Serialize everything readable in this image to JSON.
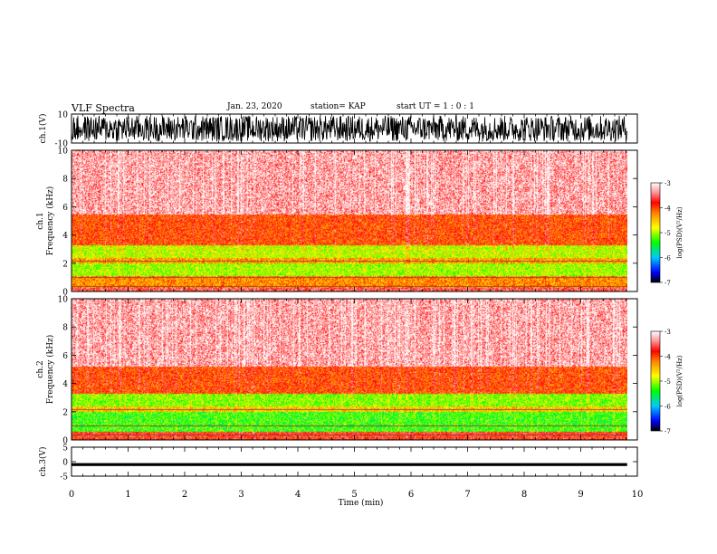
{
  "header": {
    "title": "VLF Spectra",
    "date": "Jan. 23, 2020",
    "station": "station= KAP",
    "start": "start UT = 1 : 0 : 1"
  },
  "chart_data": [
    {
      "type": "line",
      "panel": "ch1-waveform",
      "ylabel": "ch.1(V)",
      "ylim": [
        -10,
        10
      ],
      "yticks": [
        "10",
        "-10"
      ],
      "xlim": [
        0,
        10
      ],
      "data_end_min": 9.82,
      "description_of_trace": "dense black voltage trace oscillating roughly between -9 and +9 V",
      "amplitude_v": 9
    },
    {
      "type": "heatmap",
      "panel": "ch1-spectrogram",
      "ylabel": "ch.1 Frequency (kHz)",
      "ylim": [
        0,
        10
      ],
      "yticks": [
        "0",
        "2",
        "4",
        "6",
        "8",
        "10"
      ],
      "xlim": [
        0,
        10
      ],
      "data_end_min": 9.82,
      "bands_khz": [
        {
          "from": 0,
          "to": 0.3,
          "level": -3.6
        },
        {
          "from": 0.3,
          "to": 1.1,
          "level": -4.3
        },
        {
          "from": 1.1,
          "to": 2.0,
          "level": -5.0
        },
        {
          "from": 2.0,
          "to": 2.4,
          "level": -4.4
        },
        {
          "from": 2.4,
          "to": 3.3,
          "level": -4.9
        },
        {
          "from": 3.3,
          "to": 5.5,
          "level": -4.0
        },
        {
          "from": 5.5,
          "to": 10,
          "level": -3.3
        }
      ],
      "colorbar": {
        "label": "log(PSD)(V²/Hz)",
        "ticks": [
          "-3",
          "-4",
          "-5",
          "-6",
          "-7"
        ],
        "range": [
          -7,
          -3
        ]
      }
    },
    {
      "type": "heatmap",
      "panel": "ch2-spectrogram",
      "ylabel": "ch.2 Frequency (kHz)",
      "ylim": [
        0,
        10
      ],
      "yticks": [
        "0",
        "2",
        "4",
        "6",
        "8",
        "10"
      ],
      "xlim": [
        0,
        10
      ],
      "data_end_min": 9.82,
      "bands_khz": [
        {
          "from": 0,
          "to": 0.6,
          "level": -3.8
        },
        {
          "from": 0.6,
          "to": 2.0,
          "level": -5.3
        },
        {
          "from": 2.0,
          "to": 2.4,
          "level": -4.6
        },
        {
          "from": 2.4,
          "to": 3.3,
          "level": -5.1
        },
        {
          "from": 3.3,
          "to": 5.2,
          "level": -4.0
        },
        {
          "from": 5.2,
          "to": 10,
          "level": -3.3
        }
      ],
      "colorbar": {
        "label": "log(PSD)(V²/Hz)",
        "ticks": [
          "-3",
          "-4",
          "-5",
          "-6",
          "-7"
        ],
        "range": [
          -7,
          -3
        ]
      }
    },
    {
      "type": "line",
      "panel": "ch3-waveform",
      "ylabel": "ch.3(V)",
      "ylim": [
        -5,
        5
      ],
      "yticks": [
        "5",
        "0",
        "-5"
      ],
      "xlim": [
        0,
        10
      ],
      "data_end_min": 9.82,
      "description_of_trace": "near-flat thick black trace around -1 V",
      "center_v": -1,
      "amplitude_v": 0.5
    }
  ],
  "x_axis": {
    "label": "Time (min)",
    "ticks": [
      "0",
      "1",
      "2",
      "3",
      "4",
      "5",
      "6",
      "7",
      "8",
      "9",
      "10"
    ]
  },
  "colorscale": {
    "stops": [
      {
        "v": -7,
        "color": "#000000"
      },
      {
        "v": -6.6,
        "color": "#0000ff"
      },
      {
        "v": -6.0,
        "color": "#00c8ff"
      },
      {
        "v": -5.4,
        "color": "#00ff00"
      },
      {
        "v": -4.8,
        "color": "#ffff00"
      },
      {
        "v": -4.2,
        "color": "#ff8000"
      },
      {
        "v": -3.8,
        "color": "#ff0000"
      },
      {
        "v": -3.4,
        "color": "#ff9090"
      },
      {
        "v": -3.0,
        "color": "#ffffff"
      }
    ]
  }
}
